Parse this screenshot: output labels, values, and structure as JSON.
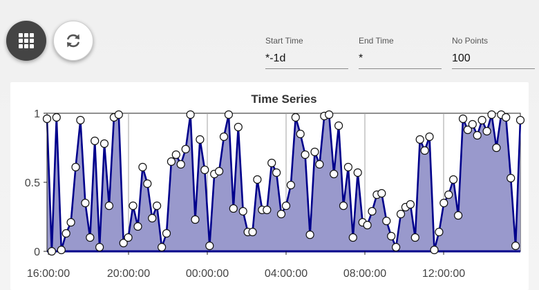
{
  "toolbar": {
    "grid_icon": "grid-icon",
    "refresh_icon": "refresh-icon"
  },
  "fields": {
    "start_time": {
      "label": "Start Time",
      "value": "*-1d"
    },
    "end_time": {
      "label": "End Time",
      "value": "*"
    },
    "num_points": {
      "label": "No Points",
      "value": "100"
    }
  },
  "colors": {
    "line": "#00008b",
    "fill": "#9999cc",
    "marker_fill": "#ffffff",
    "grid": "#a0a0a0"
  },
  "chart_data": {
    "type": "area",
    "title": "Time Series",
    "xlabel": "",
    "ylabel": "",
    "ylim": [
      0,
      1
    ],
    "y_ticks": [
      "0",
      "0.5",
      "1"
    ],
    "x_ticks": [
      "16:00:00",
      "20:00:00",
      "00:00:00",
      "04:00:00",
      "08:00:00",
      "12:00:00"
    ],
    "grid": "vertical",
    "values": [
      0.96,
      0.0,
      0.97,
      0.01,
      0.13,
      0.21,
      0.61,
      0.95,
      0.35,
      0.1,
      0.8,
      0.03,
      0.78,
      0.33,
      0.97,
      0.99,
      0.06,
      0.1,
      0.33,
      0.18,
      0.61,
      0.49,
      0.24,
      0.33,
      0.03,
      0.13,
      0.65,
      0.7,
      0.63,
      0.74,
      0.99,
      0.23,
      0.81,
      0.59,
      0.04,
      0.56,
      0.58,
      0.83,
      0.99,
      0.31,
      0.9,
      0.29,
      0.14,
      0.14,
      0.52,
      0.3,
      0.3,
      0.64,
      0.57,
      0.27,
      0.33,
      0.48,
      0.97,
      0.85,
      0.7,
      0.12,
      0.72,
      0.63,
      0.98,
      0.99,
      0.56,
      0.91,
      0.33,
      0.61,
      0.1,
      0.57,
      0.21,
      0.19,
      0.29,
      0.41,
      0.42,
      0.22,
      0.11,
      0.03,
      0.27,
      0.32,
      0.34,
      0.1,
      0.81,
      0.73,
      0.83,
      0.01,
      0.14,
      0.35,
      0.41,
      0.52,
      0.26,
      0.96,
      0.88,
      0.92,
      0.84,
      0.95,
      0.87,
      0.99,
      0.75,
      0.99,
      0.97,
      0.53,
      0.04,
      0.95
    ]
  }
}
